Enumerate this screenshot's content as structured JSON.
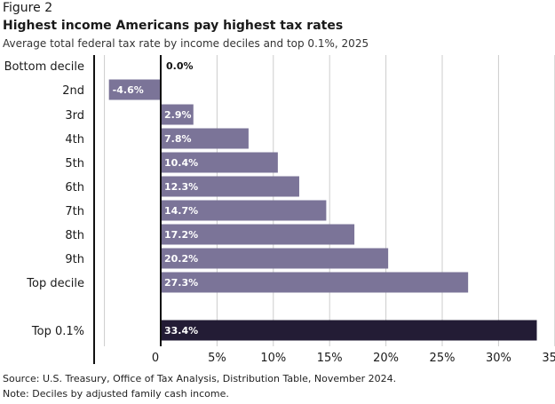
{
  "figure_label": "Figure 2",
  "title": "Highest income Americans pay highest tax rates",
  "subtitle": "Average total federal tax rate by income deciles and top 0.1%, 2025",
  "source": "Source: U.S. Treasury, Office of Tax Analysis, Distribution Table, November 2024.",
  "note": "Note: Deciles by adjusted family cash income.",
  "colors": {
    "bar": "#7b7498",
    "highlight": "#231c35",
    "axis": "#111111",
    "grid": "#cccccc"
  },
  "chart_data": {
    "type": "bar",
    "orientation": "horizontal",
    "title": "Highest income Americans pay highest tax rates",
    "subtitle": "Average total federal tax rate by income deciles and top 0.1%, 2025",
    "xlabel": "",
    "ylabel": "",
    "xlim": [
      -5,
      35
    ],
    "grid": true,
    "categories": [
      "Bottom decile",
      "2nd",
      "3rd",
      "4th",
      "5th",
      "6th",
      "7th",
      "8th",
      "9th",
      "Top decile",
      "Top 0.1%"
    ],
    "values": [
      0.0,
      -4.6,
      2.9,
      7.8,
      10.4,
      12.3,
      14.7,
      17.2,
      20.2,
      27.3,
      33.4
    ],
    "data_labels": [
      "0.0%",
      "-4.6%",
      "2.9%",
      "7.8%",
      "10.4%",
      "12.3%",
      "14.7%",
      "17.2%",
      "20.2%",
      "27.3%",
      "33.4%"
    ],
    "highlight": [
      false,
      false,
      false,
      false,
      false,
      false,
      false,
      false,
      false,
      false,
      true
    ],
    "x_ticks": [
      0,
      5,
      10,
      15,
      20,
      25,
      30,
      35
    ],
    "x_tick_labels": [
      "0",
      "5%",
      "10%",
      "15%",
      "20%",
      "25%",
      "30%",
      "35%"
    ]
  }
}
